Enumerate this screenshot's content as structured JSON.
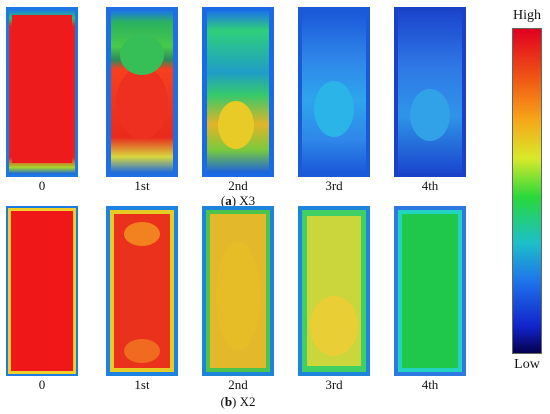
{
  "figure": {
    "colorbar": {
      "high_label": "High",
      "low_label": "Low",
      "stops": [
        "#e0001f",
        "#f05b14",
        "#f6a619",
        "#d8e92a",
        "#28d83b",
        "#1dbfc9",
        "#1e73ea",
        "#1123c9",
        "#06004e"
      ]
    },
    "rows": [
      {
        "caption_prefix": "(",
        "caption_letter": "a",
        "caption_suffix": ") X3",
        "panels": [
          {
            "label": "0",
            "base_color": "#1874e8",
            "inner_color": "#ec1c1f",
            "level": "high"
          },
          {
            "label": "1st",
            "base_color": "#1f73e8",
            "inner_color": "#ea2a1d",
            "level": "mixed"
          },
          {
            "label": "2nd",
            "base_color": "#1c84dc",
            "inner_color": "#e1d53a",
            "level": "medium"
          },
          {
            "label": "3rd",
            "base_color": "#1f68df",
            "inner_color": "#3f9eef",
            "level": "low"
          },
          {
            "label": "4th",
            "base_color": "#1a4fd2",
            "inner_color": "#3b88e9",
            "level": "lower"
          }
        ]
      },
      {
        "caption_prefix": "(",
        "caption_letter": "b",
        "caption_suffix": ") X2",
        "panels": [
          {
            "label": "0",
            "base_color": "#1f7ee2",
            "inner_color": "#ef1717",
            "level": "high"
          },
          {
            "label": "1st",
            "base_color": "#1c7fe2",
            "inner_color": "#ef311f",
            "level": "high"
          },
          {
            "label": "2nd",
            "base_color": "#1f8fd8",
            "inner_color": "#e6bb24",
            "level": "medium-high"
          },
          {
            "label": "3rd",
            "base_color": "#2481de",
            "inner_color": "#c5d034",
            "level": "medium"
          },
          {
            "label": "4th",
            "base_color": "#2b7de6",
            "inner_color": "#1fc84d",
            "level": "medium-low"
          }
        ]
      }
    ]
  }
}
